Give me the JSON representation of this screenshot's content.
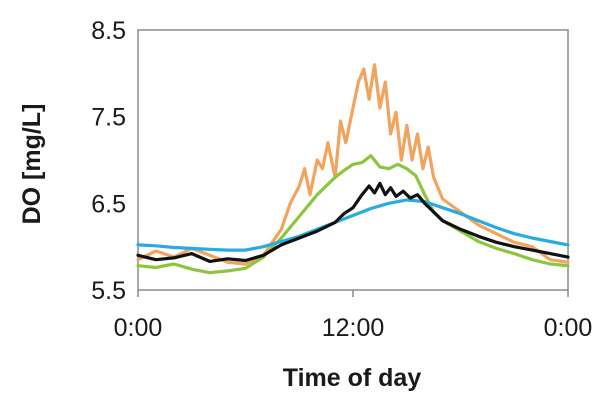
{
  "chart_data": {
    "type": "line",
    "title": "",
    "xlabel": "Time of day",
    "ylabel": "DO  [mg/L]",
    "xlim": [
      0,
      24
    ],
    "ylim": [
      5.5,
      8.5
    ],
    "x_ticks": [
      {
        "value": 0,
        "label": "0:00"
      },
      {
        "value": 12,
        "label": "12:00"
      },
      {
        "value": 24,
        "label": "0:00"
      }
    ],
    "y_ticks": [
      {
        "value": 8.5,
        "label": "8.5"
      },
      {
        "value": 7.5,
        "label": "7.5"
      },
      {
        "value": 6.5,
        "label": "6.5"
      },
      {
        "value": 5.5,
        "label": "5.5"
      }
    ],
    "grid": false,
    "legend": "none",
    "series": [
      {
        "color": "#f2a35e",
        "x": [
          0,
          1,
          2,
          3,
          4,
          5,
          6,
          7,
          8,
          8.5,
          9,
          9.3,
          9.6,
          10,
          10.3,
          10.6,
          11,
          11.3,
          11.6,
          12,
          12.3,
          12.6,
          12.9,
          13.2,
          13.5,
          13.8,
          14.1,
          14.4,
          14.7,
          15,
          15.3,
          15.6,
          15.9,
          16.2,
          16.5,
          17,
          18,
          19,
          20,
          21,
          22,
          23,
          24
        ],
        "y": [
          5.85,
          5.95,
          5.88,
          5.98,
          5.9,
          5.82,
          5.8,
          5.9,
          6.2,
          6.5,
          6.7,
          6.9,
          6.6,
          7.0,
          6.9,
          7.2,
          6.8,
          7.45,
          7.2,
          7.6,
          7.9,
          8.05,
          7.7,
          8.1,
          7.6,
          7.9,
          7.3,
          7.55,
          7.0,
          7.4,
          7.0,
          7.3,
          6.9,
          7.15,
          6.8,
          6.55,
          6.4,
          6.25,
          6.15,
          6.05,
          6.0,
          5.85,
          5.82
        ]
      },
      {
        "color": "#8cc63f",
        "x": [
          0,
          1,
          2,
          3,
          4,
          5,
          6,
          7,
          8,
          9,
          10,
          11,
          11.5,
          12,
          12.5,
          13,
          13.5,
          14,
          14.5,
          15,
          15.5,
          16,
          16.5,
          17,
          18,
          19,
          20,
          21,
          22,
          23,
          24
        ],
        "y": [
          5.78,
          5.76,
          5.8,
          5.74,
          5.7,
          5.72,
          5.75,
          5.88,
          6.1,
          6.35,
          6.6,
          6.8,
          6.88,
          6.95,
          6.97,
          7.05,
          6.92,
          6.9,
          6.95,
          6.9,
          6.82,
          6.6,
          6.4,
          6.3,
          6.18,
          6.06,
          5.98,
          5.92,
          5.85,
          5.8,
          5.78
        ]
      },
      {
        "color": "#29abe2",
        "x": [
          0,
          1,
          2,
          3,
          4,
          5,
          6,
          7,
          8,
          9,
          10,
          11,
          12,
          13,
          14,
          15,
          16,
          17,
          18,
          19,
          20,
          21,
          22,
          23,
          24
        ],
        "y": [
          6.02,
          6.01,
          5.99,
          5.98,
          5.97,
          5.96,
          5.96,
          6.0,
          6.06,
          6.12,
          6.2,
          6.28,
          6.36,
          6.44,
          6.5,
          6.54,
          6.52,
          6.45,
          6.38,
          6.3,
          6.22,
          6.15,
          6.1,
          6.06,
          6.02
        ]
      },
      {
        "color": "#111111",
        "x": [
          0,
          1,
          2,
          3,
          4,
          5,
          6,
          7,
          8,
          9,
          10,
          11,
          11.5,
          12,
          12.5,
          12.9,
          13.2,
          13.5,
          13.8,
          14.1,
          14.4,
          14.8,
          15.2,
          15.6,
          16,
          16.5,
          17,
          18,
          19,
          20,
          21,
          22,
          23,
          24
        ],
        "y": [
          5.9,
          5.85,
          5.87,
          5.92,
          5.83,
          5.86,
          5.84,
          5.9,
          6.02,
          6.1,
          6.18,
          6.28,
          6.38,
          6.45,
          6.6,
          6.7,
          6.62,
          6.73,
          6.6,
          6.68,
          6.58,
          6.64,
          6.56,
          6.6,
          6.5,
          6.4,
          6.3,
          6.2,
          6.12,
          6.05,
          6.0,
          5.96,
          5.92,
          5.88
        ]
      }
    ]
  }
}
